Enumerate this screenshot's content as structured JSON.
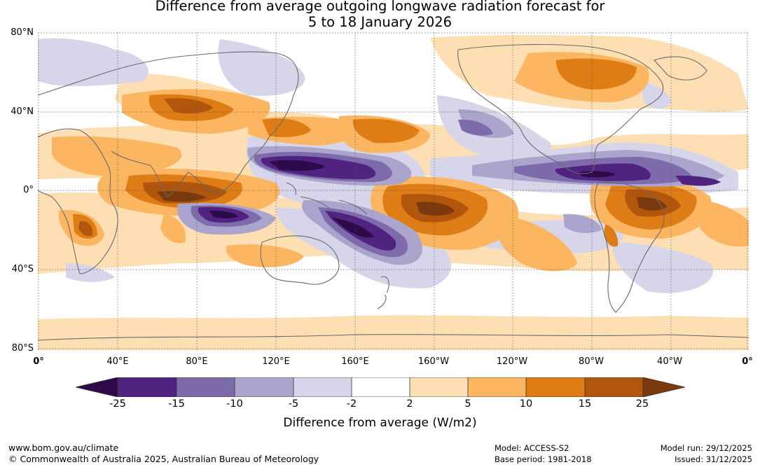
{
  "title": {
    "line1": "Difference from average outgoing longwave radiation forecast for",
    "line2": "5 to 18 January 2026"
  },
  "axes": {
    "lat_labels": [
      "80°N",
      "40°N",
      "0°",
      "40°S",
      "80°S"
    ],
    "lon_labels": [
      "0°",
      "40°E",
      "80°E",
      "120°E",
      "160°E",
      "160°W",
      "120°W",
      "80°W",
      "40°W",
      "0°"
    ]
  },
  "colorbar": {
    "ticks": [
      "-25",
      "-15",
      "-10",
      "-5",
      "-2",
      "2",
      "5",
      "10",
      "15",
      "25"
    ],
    "colors": [
      "#2d0a4a",
      "#512381",
      "#7d6bab",
      "#aba4cd",
      "#d6d5e9",
      "#ffffff",
      "#fedeb3",
      "#fcb662",
      "#de7d15",
      "#b2560d",
      "#7b3a0d"
    ],
    "label": "Difference from average (W/m2)"
  },
  "footer": {
    "website": "www.bom.gov.au/climate",
    "copyright": "© Commonwealth of Australia 2025, Australian Bureau of Meteorology",
    "model": "Model: ACCESS-S2",
    "base_period": "Base period: 1981-2018",
    "model_run": "Model run: 29/12/2025",
    "issued": "Issued: 31/12/2025"
  }
}
